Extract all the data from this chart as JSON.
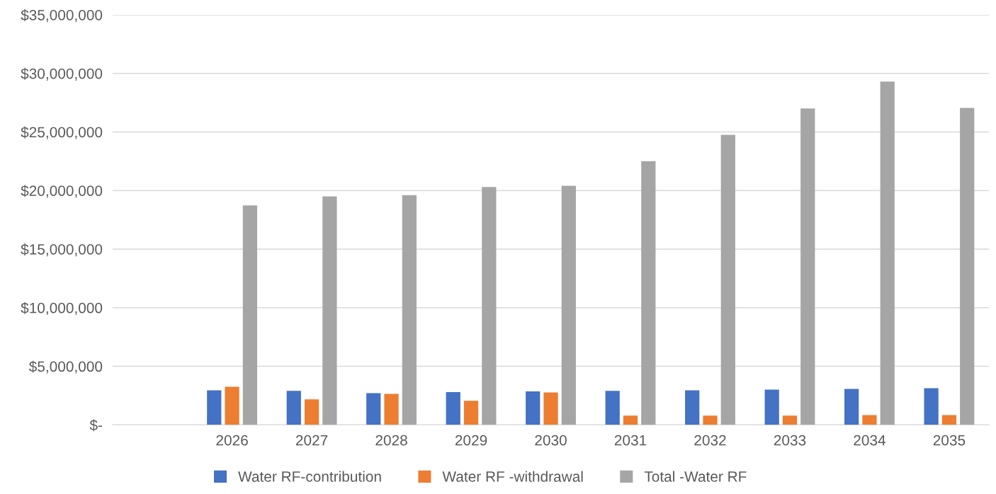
{
  "chart_data": {
    "type": "bar",
    "categories": [
      null,
      "2026",
      "2027",
      "2028",
      "2029",
      "2030",
      "2031",
      "2032",
      "2033",
      "2034",
      "2035"
    ],
    "series": [
      {
        "name": "Water RF-contribution",
        "color": "#4472c4",
        "values": [
          null,
          2950000,
          2900000,
          2700000,
          2800000,
          2850000,
          2900000,
          2950000,
          3000000,
          3070000,
          3130000
        ]
      },
      {
        "name": "Water RF -withdrawal",
        "color": "#ed7d31",
        "values": [
          null,
          3250000,
          2170000,
          2650000,
          2050000,
          2770000,
          780000,
          780000,
          780000,
          840000,
          840000
        ]
      },
      {
        "name": "Total -Water RF",
        "color": "#a5a5a5",
        "values": [
          null,
          18730000,
          19500000,
          19600000,
          20300000,
          20400000,
          22500000,
          24760000,
          27000000,
          29300000,
          27050000
        ]
      }
    ],
    "ylim": [
      0,
      35000000
    ],
    "yticks": [
      {
        "value": 0,
        "label": "$-"
      },
      {
        "value": 5000000,
        "label": "$5,000,000"
      },
      {
        "value": 10000000,
        "label": "$10,000,000"
      },
      {
        "value": 15000000,
        "label": "$15,000,000"
      },
      {
        "value": 20000000,
        "label": "$20,000,000"
      },
      {
        "value": 25000000,
        "label": "$25,000,000"
      },
      {
        "value": 30000000,
        "label": "$30,000,000"
      },
      {
        "value": 35000000,
        "label": "$35,000,000"
      }
    ],
    "grid": "y",
    "legend": "bottom"
  }
}
